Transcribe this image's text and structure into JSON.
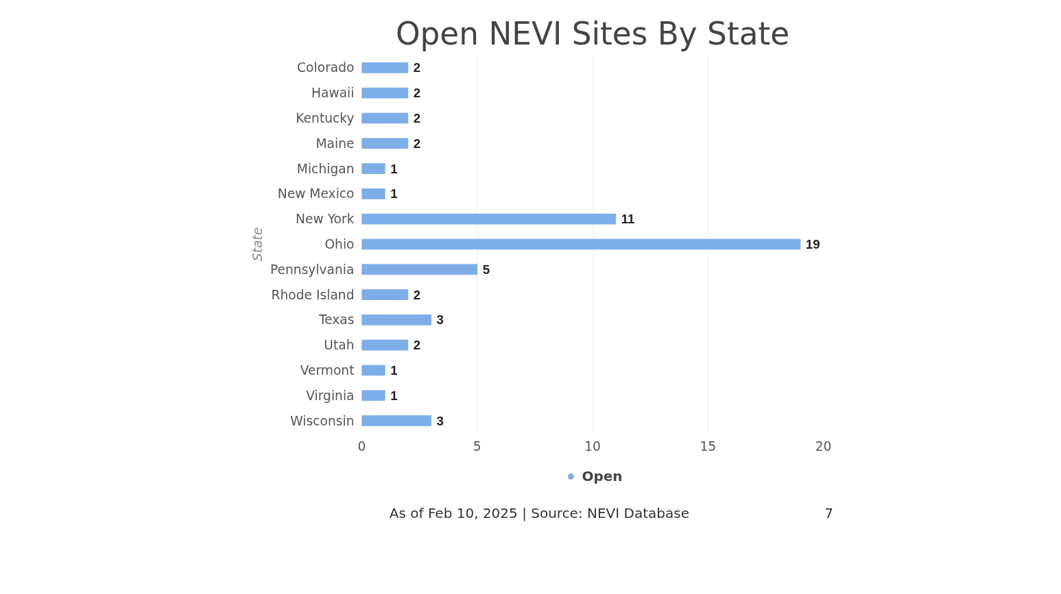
{
  "chart_data": {
    "type": "bar",
    "orientation": "horizontal",
    "title": "Open NEVI Sites By State",
    "ylabel": "State",
    "categories": [
      "Colorado",
      "Hawaii",
      "Kentucky",
      "Maine",
      "Michigan",
      "New Mexico",
      "New York",
      "Ohio",
      "Pennsylvania",
      "Rhode Island",
      "Texas",
      "Utah",
      "Vermont",
      "Virginia",
      "Wisconsin"
    ],
    "series": [
      {
        "name": "Open",
        "color": "#7eaee8",
        "values": [
          2,
          2,
          2,
          2,
          1,
          1,
          11,
          19,
          5,
          2,
          3,
          2,
          1,
          1,
          3
        ]
      }
    ],
    "xlim": [
      0,
      20
    ],
    "xticks": [
      0,
      5,
      10,
      15,
      20
    ],
    "grid": "x",
    "legend": "bottom",
    "data_labels": true,
    "annotations": [
      "As of Feb 10, 2025 | Source: NEVI Database",
      "7"
    ]
  }
}
